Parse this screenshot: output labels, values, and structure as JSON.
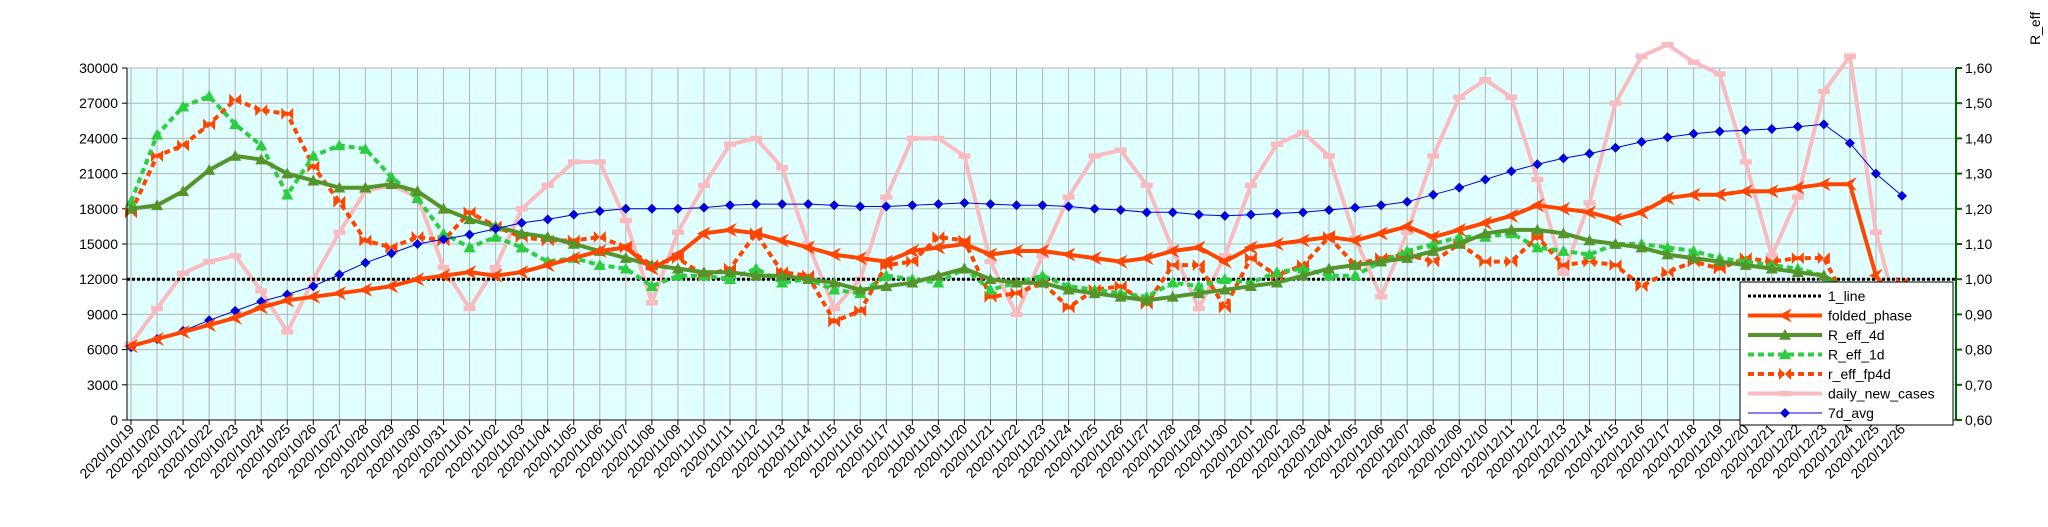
{
  "chart_data": {
    "type": "line",
    "title": "",
    "xlabel": "",
    "ylabel_left": "",
    "ylabel_right": "R_eff",
    "ylim_left": [
      0,
      30000
    ],
    "yticks_left": [
      "0",
      "3000",
      "6000",
      "9000",
      "12000",
      "15000",
      "18000",
      "21000",
      "24000",
      "27000",
      "30000"
    ],
    "ylim_right": [
      0.6,
      1.6
    ],
    "yticks_right": [
      "0,60",
      "0,70",
      "0,80",
      "0,90",
      "1,00",
      "1,10",
      "1,20",
      "1,30",
      "1,40",
      "1,50",
      "1,60"
    ],
    "grid": true,
    "legend_position": "bottom-right",
    "categories": [
      "2020/10/19",
      "2020/10/20",
      "2020/10/21",
      "2020/10/22",
      "2020/10/23",
      "2020/10/24",
      "2020/10/25",
      "2020/10/26",
      "2020/10/27",
      "2020/10/28",
      "2020/10/29",
      "2020/10/30",
      "2020/10/31",
      "2020/11/01",
      "2020/11/02",
      "2020/11/03",
      "2020/11/04",
      "2020/11/05",
      "2020/11/06",
      "2020/11/07",
      "2020/11/08",
      "2020/11/09",
      "2020/11/10",
      "2020/11/11",
      "2020/11/12",
      "2020/11/13",
      "2020/11/14",
      "2020/11/15",
      "2020/11/16",
      "2020/11/17",
      "2020/11/18",
      "2020/11/19",
      "2020/11/20",
      "2020/11/21",
      "2020/11/22",
      "2020/11/23",
      "2020/11/24",
      "2020/11/25",
      "2020/11/26",
      "2020/11/27",
      "2020/11/28",
      "2020/11/29",
      "2020/11/30",
      "2020/12/01",
      "2020/12/02",
      "2020/12/03",
      "2020/12/04",
      "2020/12/05",
      "2020/12/06",
      "2020/12/07",
      "2020/12/08",
      "2020/12/09",
      "2020/12/10",
      "2020/12/11",
      "2020/12/12",
      "2020/12/13",
      "2020/12/14",
      "2020/12/15",
      "2020/12/16",
      "2020/12/17",
      "2020/12/18",
      "2020/12/19",
      "2020/12/20",
      "2020/12/21",
      "2020/12/22",
      "2020/12/23",
      "2020/12/24",
      "2020/12/25",
      "2020/12/26"
    ],
    "series": [
      {
        "name": "1_line",
        "axis": "right",
        "color": "#000000",
        "values": [
          1,
          1,
          1,
          1,
          1,
          1,
          1,
          1,
          1,
          1,
          1,
          1,
          1,
          1,
          1,
          1,
          1,
          1,
          1,
          1,
          1,
          1,
          1,
          1,
          1,
          1,
          1,
          1,
          1,
          1,
          1,
          1,
          1,
          1,
          1,
          1,
          1,
          1,
          1,
          1,
          1,
          1,
          1,
          1,
          1,
          1,
          1,
          1,
          1,
          1,
          1,
          1,
          1,
          1,
          1,
          1,
          1,
          1,
          1,
          1,
          1,
          1,
          1,
          1,
          1,
          1,
          1,
          1,
          1
        ]
      },
      {
        "name": "folded_phase",
        "axis": "right",
        "color": "#ff4500",
        "values": [
          0.81,
          0.83,
          0.85,
          0.87,
          0.89,
          0.92,
          0.94,
          0.95,
          0.96,
          0.97,
          0.98,
          1.0,
          1.01,
          1.02,
          1.01,
          1.02,
          1.04,
          1.06,
          1.08,
          1.09,
          1.03,
          1.07,
          1.13,
          1.14,
          1.13,
          1.11,
          1.09,
          1.07,
          1.06,
          1.05,
          1.08,
          1.09,
          1.1,
          1.07,
          1.08,
          1.08,
          1.07,
          1.06,
          1.05,
          1.06,
          1.08,
          1.09,
          1.05,
          1.09,
          1.1,
          1.11,
          1.12,
          1.11,
          1.13,
          1.15,
          1.12,
          1.14,
          1.16,
          1.18,
          1.21,
          1.2,
          1.19,
          1.17,
          1.19,
          1.23,
          1.24,
          1.24,
          1.25,
          1.25,
          1.26,
          1.27,
          1.27,
          1.01,
          0.91
        ]
      },
      {
        "name": "R_eff_4d",
        "axis": "right",
        "color": "#55942b",
        "values": [
          1.2,
          1.21,
          1.25,
          1.31,
          1.35,
          1.34,
          1.3,
          1.28,
          1.26,
          1.26,
          1.27,
          1.25,
          1.2,
          1.17,
          1.15,
          1.13,
          1.12,
          1.1,
          1.08,
          1.06,
          1.04,
          1.03,
          1.02,
          1.02,
          1.01,
          1.01,
          1.0,
          0.99,
          0.97,
          0.98,
          0.99,
          1.01,
          1.03,
          1.0,
          0.99,
          0.99,
          0.97,
          0.96,
          0.95,
          0.94,
          0.95,
          0.96,
          0.97,
          0.98,
          0.99,
          1.01,
          1.03,
          1.04,
          1.05,
          1.06,
          1.08,
          1.1,
          1.13,
          1.14,
          1.14,
          1.13,
          1.11,
          1.1,
          1.09,
          1.07,
          1.06,
          1.05,
          1.04,
          1.03,
          1.02,
          1.01,
          0.97,
          0.92,
          0.87
        ]
      },
      {
        "name": "R_eff_1d",
        "axis": "right",
        "color": "#2ecc40",
        "values": [
          1.22,
          1.41,
          1.49,
          1.52,
          1.44,
          1.38,
          1.24,
          1.35,
          1.38,
          1.37,
          1.29,
          1.23,
          1.13,
          1.09,
          1.12,
          1.09,
          1.05,
          1.06,
          1.04,
          1.03,
          0.98,
          1.01,
          1.01,
          1.0,
          1.03,
          0.99,
          1.0,
          0.97,
          0.96,
          1.01,
          1.0,
          0.99,
          1.03,
          0.97,
          0.99,
          1.01,
          0.98,
          0.97,
          0.96,
          0.95,
          0.99,
          0.98,
          1.0,
          0.99,
          1.02,
          1.03,
          1.01,
          1.01,
          1.05,
          1.08,
          1.1,
          1.12,
          1.12,
          1.13,
          1.09,
          1.08,
          1.07,
          1.1,
          1.1,
          1.09,
          1.08,
          1.06,
          1.05,
          1.04,
          1.03,
          1.01,
          0.88,
          0.78,
          0.8
        ]
      },
      {
        "name": "r_eff_fp4d",
        "axis": "right",
        "color": "#ff4500",
        "values": [
          1.19,
          1.35,
          1.38,
          1.44,
          1.51,
          1.48,
          1.47,
          1.32,
          1.22,
          1.11,
          1.09,
          1.12,
          1.11,
          1.19,
          1.15,
          1.12,
          1.11,
          1.11,
          1.12,
          1.09,
          1.04,
          1.06,
          1.01,
          1.03,
          1.13,
          1.02,
          1.01,
          0.88,
          0.91,
          1.04,
          1.05,
          1.12,
          1.11,
          0.95,
          0.96,
          0.99,
          0.92,
          0.97,
          0.98,
          0.93,
          1.04,
          1.04,
          0.92,
          1.06,
          1.01,
          1.04,
          1.12,
          1.04,
          1.06,
          1.07,
          1.05,
          1.1,
          1.05,
          1.05,
          1.12,
          1.04,
          1.05,
          1.04,
          0.98,
          1.02,
          1.05,
          1.03,
          1.06,
          1.05,
          1.06,
          1.06,
          0.92,
          0.88,
          0.99
        ]
      },
      {
        "name": "daily_new_cases",
        "axis": "left",
        "color": "#f8bcc0",
        "values": [
          6500,
          9500,
          12500,
          13500,
          14000,
          11000,
          7500,
          12000,
          16000,
          19500,
          20000,
          19000,
          13000,
          9500,
          13000,
          18000,
          20000,
          22000,
          22000,
          17000,
          10000,
          16000,
          20000,
          23500,
          24000,
          21500,
          15000,
          9500,
          12000,
          19000,
          24000,
          24000,
          22500,
          13500,
          9000,
          14000,
          19000,
          22500,
          23000,
          20000,
          14500,
          9500,
          14000,
          20000,
          23500,
          24500,
          22500,
          15500,
          10500,
          16000,
          22500,
          27500,
          29000,
          27500,
          20500,
          12500,
          18500,
          27000,
          31000,
          32000,
          30500,
          29500,
          22000,
          14000,
          19000,
          28000,
          31000,
          16000,
          7500
        ]
      },
      {
        "name": "7d_avg",
        "axis": "left",
        "color": "#0000dd",
        "values": [
          6200,
          6900,
          7600,
          8500,
          9300,
          10100,
          10700,
          11400,
          12400,
          13400,
          14200,
          15000,
          15400,
          15800,
          16300,
          16800,
          17100,
          17500,
          17800,
          18000,
          18000,
          18000,
          18100,
          18300,
          18400,
          18400,
          18400,
          18300,
          18200,
          18200,
          18300,
          18400,
          18500,
          18400,
          18300,
          18300,
          18200,
          18000,
          17900,
          17700,
          17700,
          17500,
          17400,
          17500,
          17600,
          17700,
          17900,
          18100,
          18300,
          18600,
          19200,
          19800,
          20500,
          21200,
          21800,
          22300,
          22700,
          23200,
          23700,
          24100,
          24400,
          24600,
          24700,
          24800,
          25000,
          25200,
          23600,
          21000,
          19100
        ]
      }
    ]
  }
}
